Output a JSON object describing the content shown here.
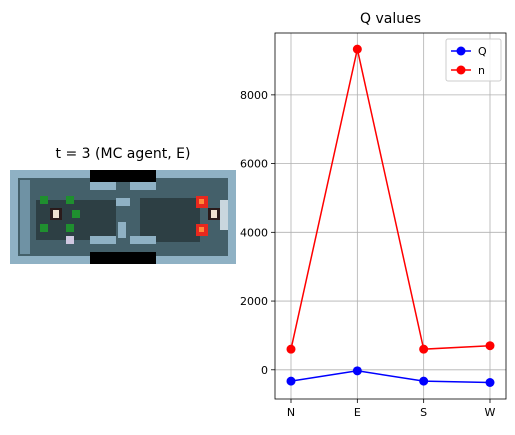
{
  "game_panel": {
    "title": "t = 3 (MC agent, E)",
    "icons": [
      "wall-tile",
      "floor-tile",
      "green-agent",
      "ghost-monster",
      "fire-tile",
      "door-tile"
    ]
  },
  "chart_data": {
    "type": "line",
    "title": "Q values",
    "categories": [
      "N",
      "E",
      "S",
      "W"
    ],
    "series": [
      {
        "name": "Q",
        "values": [
          -330,
          -30,
          -330,
          -370
        ],
        "color": "#0000ff"
      },
      {
        "name": "n",
        "values": [
          600,
          9330,
          600,
          700
        ],
        "color": "#ff0000"
      }
    ],
    "ylim": [
      -850,
      9800
    ],
    "yticks": [
      0,
      2000,
      4000,
      6000,
      8000
    ],
    "grid": true,
    "legend": "top-right"
  }
}
